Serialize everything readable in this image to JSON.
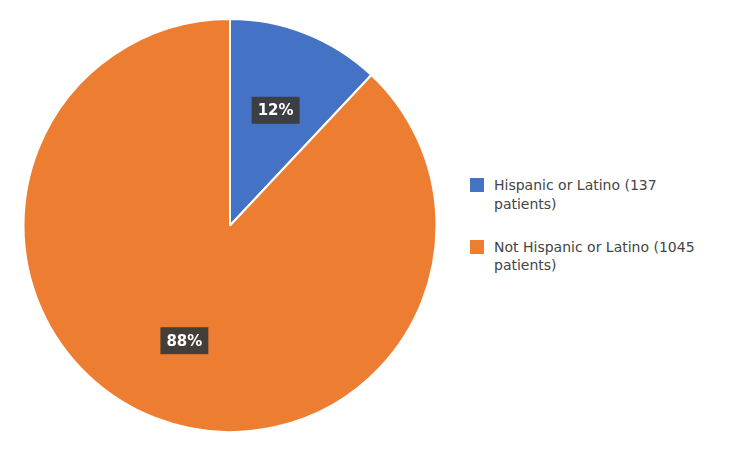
{
  "chart_data": {
    "type": "pie",
    "categories": [
      "Hispanic or Latino (137\npatients)",
      "Not Hispanic or Latino (1045\npatients)"
    ],
    "values": [
      12,
      88
    ],
    "value_labels": [
      "12%",
      "88%"
    ],
    "colors": [
      "#4472C4",
      "#ED7D31"
    ],
    "data_labels": true,
    "legend": "right"
  }
}
